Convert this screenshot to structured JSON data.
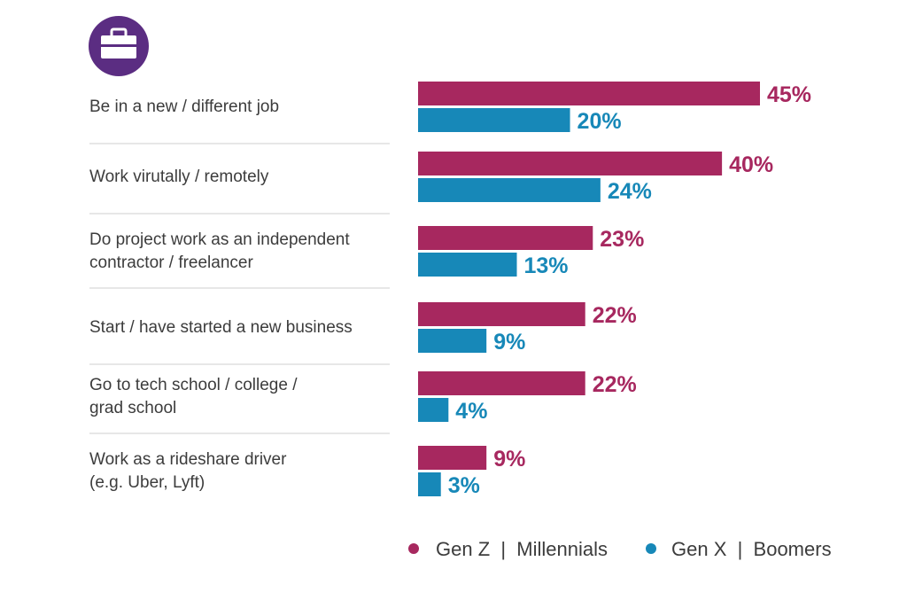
{
  "icon": {
    "name": "briefcase-icon",
    "bg_color": "#5b2d82"
  },
  "colors": {
    "genz_millennials": "#a7285f",
    "genx_boomers": "#1788b8",
    "divider": "#cfcfcf"
  },
  "chart_data": {
    "type": "bar",
    "orientation": "horizontal",
    "categories": [
      [
        "Be in a new / different job"
      ],
      [
        "Work virutally / remotely"
      ],
      [
        "Do project work as an independent",
        "contractor / freelancer"
      ],
      [
        "Start / have started a new business"
      ],
      [
        "Go to tech school / college /",
        "grad school"
      ],
      [
        "Work as a rideshare driver",
        "(e.g. Uber, Lyft)"
      ]
    ],
    "series": [
      {
        "name": "Gen Z | Millennials",
        "values": [
          45,
          40,
          23,
          22,
          22,
          9
        ],
        "labels": [
          "45%",
          "40%",
          "23%",
          "22%",
          "22%",
          "9%"
        ]
      },
      {
        "name": "Gen X | Boomers",
        "values": [
          20,
          24,
          13,
          9,
          4,
          3
        ],
        "labels": [
          "20%",
          "24%",
          "13%",
          "9%",
          "4%",
          "3%"
        ]
      }
    ],
    "xlim": [
      0,
      45
    ],
    "legend": {
      "position": "bottom-right",
      "items": [
        "Gen Z  |  Millennials",
        "Gen X  |  Boomers"
      ]
    },
    "grid": false
  }
}
